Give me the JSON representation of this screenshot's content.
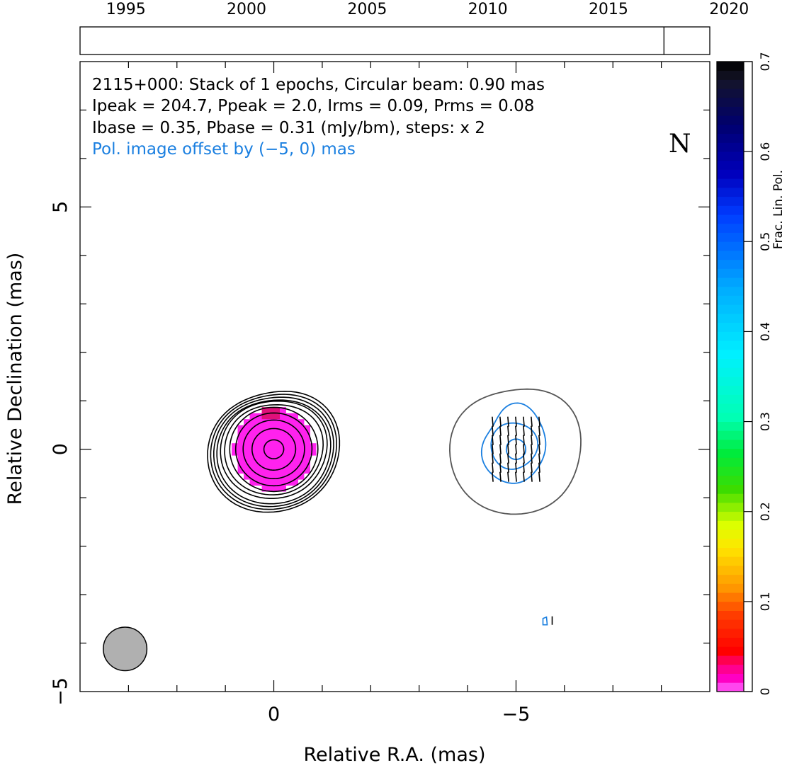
{
  "chart_data": {
    "type": "contour",
    "timeline": {
      "ticks": [
        "1995",
        "2000",
        "2005",
        "2010",
        "2015",
        "2020"
      ],
      "range": [
        1993.1,
        2019.2
      ],
      "epochs": [
        2017.3
      ]
    },
    "xlabel": "Relative R.A. (mas)",
    "ylabel": "Relative Declination (mas)",
    "x_ticks": [
      {
        "value": 0,
        "label": "0"
      },
      {
        "value": -5,
        "label": "−5"
      }
    ],
    "y_ticks": [
      {
        "value": 5,
        "label": "5"
      },
      {
        "value": 0,
        "label": "0"
      },
      {
        "value": -5,
        "label": "−5"
      }
    ],
    "xlim": [
      4,
      -9
    ],
    "ylim": [
      -5,
      8
    ],
    "annotation": {
      "line1": "2115+000: Stack of 1 epochs, Circular beam: 0.90 mas",
      "line2": "Ipeak = 204.7, Ppeak = 2.0, Irms = 0.09, Prms = 0.08",
      "line3": "Ibase = 0.35, Pbase = 0.31 (mJy/bm), steps: x 2",
      "line4": "Pol. image offset by (−5, 0) mas"
    },
    "north_label": "N",
    "colorbar": {
      "label": "Frac. Lin. Pol.",
      "range": [
        0,
        0.7
      ],
      "ticks": [
        {
          "value": 0,
          "label": "0"
        },
        {
          "value": 0.1,
          "label": "0.1"
        },
        {
          "value": 0.2,
          "label": "0.2"
        },
        {
          "value": 0.3,
          "label": "0.3"
        },
        {
          "value": 0.4,
          "label": "0.4"
        },
        {
          "value": 0.5,
          "label": "0.5"
        },
        {
          "value": 0.6,
          "label": "0.6"
        },
        {
          "value": 0.7,
          "label": "0.7"
        }
      ]
    },
    "stokes_i_contours": {
      "center": [
        0,
        0
      ],
      "radii_mas": [
        0.2,
        0.44,
        0.62,
        0.77,
        0.89,
        0.98,
        1.06,
        1.13,
        1.19,
        1.25,
        1.31
      ]
    },
    "polarization_image": {
      "center": [
        -5,
        0
      ],
      "outer_contour_radius_mas": 1.35,
      "pol_contours_radii_mas": [
        0.2,
        0.4,
        0.7
      ],
      "frac_pol_max": 0.02,
      "evpa_deg": 5
    },
    "beam": {
      "fwhm_mas": 0.9,
      "position": [
        3.07,
        -4.12
      ]
    },
    "colors": {
      "stokes_i_contour": "#000000",
      "pol_contour": "#1a7fe0",
      "outer_contour": "#555555",
      "frac_pol_fill": "#ff22ee",
      "beam_fill": "#b0b0b0",
      "annotation_pol": "#1a7fe0"
    }
  }
}
